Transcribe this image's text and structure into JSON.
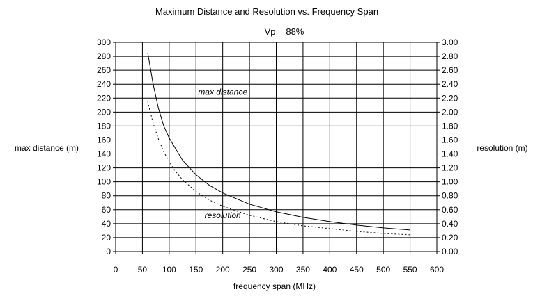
{
  "chart_data": {
    "type": "line",
    "title": "Maximum Distance and Resolution vs. Frequency Span",
    "subtitle": "Vp =  88%",
    "xlabel": "frequency span (MHz)",
    "ylabel_left": "max  distance (m)",
    "ylabel_right": "resolution (m)",
    "xlim": [
      0,
      600
    ],
    "ylim_left": [
      0,
      300
    ],
    "ylim_right": [
      0,
      3.0
    ],
    "x_ticks": [
      "0",
      "50",
      "100",
      "150",
      "200",
      "250",
      "300",
      "350",
      "400",
      "450",
      "500",
      "550",
      "600"
    ],
    "y_ticks_left": [
      "0",
      "20",
      "40",
      "60",
      "80",
      "100",
      "120",
      "140",
      "160",
      "180",
      "200",
      "220",
      "240",
      "260",
      "280",
      "300"
    ],
    "y_ticks_right": [
      "0.00",
      "0.20",
      "0.40",
      "0.60",
      "0.80",
      "1.00",
      "1.20",
      "1.40",
      "1.60",
      "1.80",
      "2.00",
      "2.20",
      "2.40",
      "2.60",
      "2.80",
      "3.00"
    ],
    "grid": true,
    "series": [
      {
        "name": "max distance",
        "axis": "left",
        "style": "solid",
        "x": [
          60,
          70,
          80,
          90,
          100,
          110,
          125,
          150,
          175,
          200,
          250,
          300,
          350,
          400,
          450,
          500,
          550
        ],
        "y": [
          285,
          240,
          205,
          180,
          163,
          150,
          131,
          110,
          95,
          84,
          68,
          57,
          49,
          43,
          38,
          34,
          31
        ]
      },
      {
        "name": "resolution",
        "axis": "right",
        "style": "dotted",
        "x": [
          60,
          70,
          80,
          90,
          100,
          110,
          125,
          150,
          175,
          200,
          250,
          300,
          350,
          400,
          450,
          500,
          550
        ],
        "y": [
          2.15,
          1.84,
          1.61,
          1.43,
          1.29,
          1.17,
          1.03,
          0.86,
          0.74,
          0.65,
          0.52,
          0.43,
          0.37,
          0.33,
          0.29,
          0.26,
          0.24
        ]
      }
    ]
  }
}
